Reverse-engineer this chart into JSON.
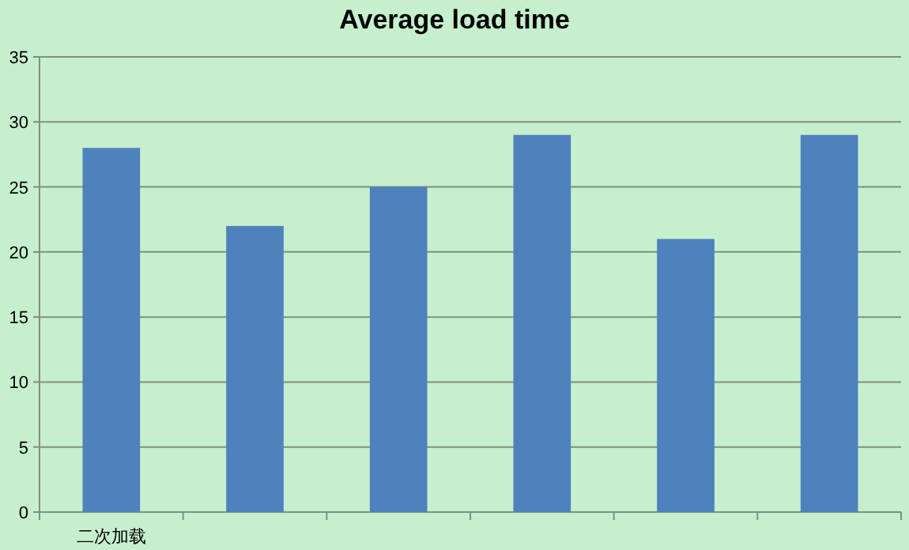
{
  "chart_data": {
    "type": "bar",
    "title": "Average load time",
    "categories": [
      "二次加载",
      null,
      null,
      null,
      null,
      null
    ],
    "series": [
      {
        "color": "#4f81bd",
        "values": [
          28,
          22,
          25,
          29,
          21,
          29
        ]
      }
    ],
    "ylim": [
      0,
      35
    ],
    "yticks": [
      0,
      5,
      10,
      15,
      20,
      25,
      30,
      35
    ],
    "grid": "y"
  }
}
